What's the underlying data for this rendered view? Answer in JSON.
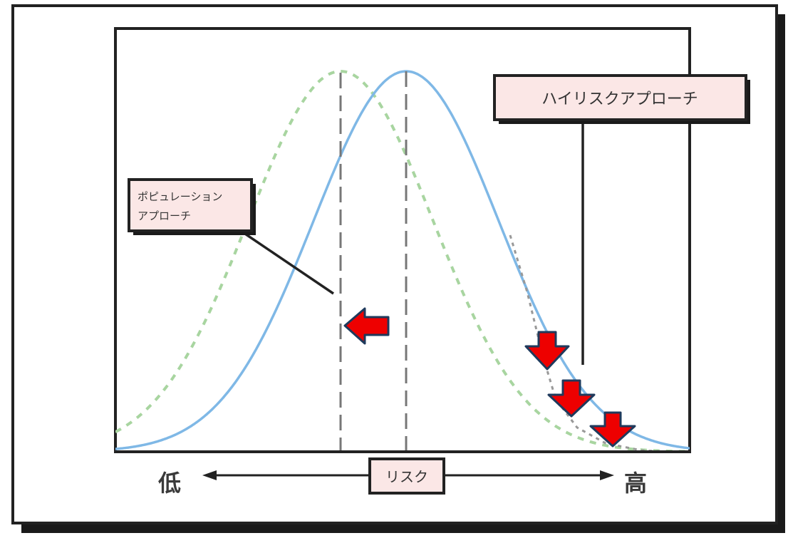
{
  "diagram": {
    "labels": {
      "high_risk_approach": "ハイリスクアプローチ",
      "population_approach": "ポピュレーションアプローチ",
      "risk": "リスク",
      "low": "低",
      "high": "高"
    },
    "colors": {
      "current_curve": "#7fb8e6",
      "shifted_curve": "#a8d5a0",
      "arrow_fill": "#ee0000",
      "arrow_stroke": "#1f3a5c",
      "label_fill": "#fbe7e6",
      "dashed_line": "#777777",
      "frame": "#222222"
    }
  }
}
